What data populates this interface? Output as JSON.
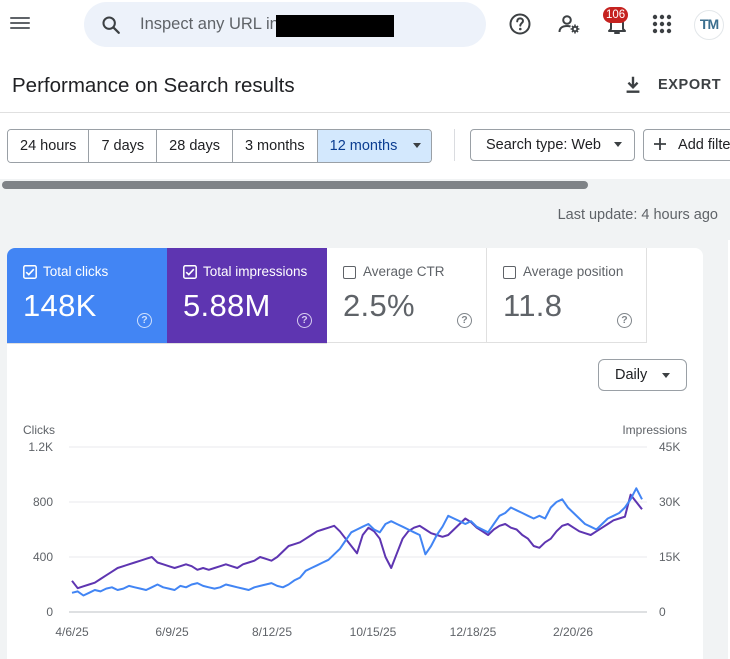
{
  "search": {
    "placeholder": "Inspect any URL in",
    "icon": "search-icon"
  },
  "header": {
    "notifications_count": "106",
    "avatar_text": "TM"
  },
  "page": {
    "title": "Performance on Search results",
    "export_label": "EXPORT"
  },
  "date_range": {
    "options": [
      "24 hours",
      "7 days",
      "28 days",
      "3 months",
      "12 months"
    ],
    "selected": "12 months"
  },
  "filters": {
    "search_type": "Search type: Web",
    "add_filter": "Add filte"
  },
  "last_update": "Last update: 4 hours ago",
  "metrics": [
    {
      "label": "Total clicks",
      "value": "148K",
      "checked": true,
      "color": "#4285f4"
    },
    {
      "label": "Total impressions",
      "value": "5.88M",
      "checked": true,
      "color": "#5e35b1"
    },
    {
      "label": "Average CTR",
      "value": "2.5%",
      "checked": false,
      "color": "#ffffff"
    },
    {
      "label": "Average position",
      "value": "11.8",
      "checked": false,
      "color": "#ffffff"
    }
  ],
  "granularity": "Daily",
  "chart_data": {
    "type": "line",
    "left_axis": {
      "title": "Clicks",
      "min": 0,
      "max": 1200,
      "ticks": [
        "0",
        "400",
        "800",
        "1.2K"
      ],
      "tick_values": [
        0,
        400,
        800,
        1200
      ]
    },
    "right_axis": {
      "title": "Impressions",
      "min": 0,
      "max": 45000,
      "ticks": [
        "0",
        "15K",
        "30K",
        "45K"
      ],
      "tick_values": [
        0,
        15000,
        30000,
        45000
      ]
    },
    "x_labels": [
      "4/6/25",
      "6/9/25",
      "8/12/25",
      "10/15/25",
      "12/18/25",
      "2/20/26"
    ],
    "grid": true,
    "legend": "none",
    "series": [
      {
        "axis": "left",
        "color": "#4285f4",
        "values": [
          140,
          150,
          120,
          140,
          160,
          150,
          170,
          180,
          160,
          170,
          190,
          180,
          170,
          160,
          180,
          200,
          180,
          170,
          160,
          190,
          180,
          200,
          210,
          190,
          180,
          170,
          180,
          200,
          190,
          180,
          170,
          160,
          180,
          190,
          200,
          210,
          190,
          180,
          200,
          230,
          250,
          300,
          320,
          340,
          360,
          380,
          420,
          460,
          520,
          580,
          600,
          620,
          640,
          600,
          580,
          640,
          660,
          640,
          620,
          600,
          580,
          560,
          420,
          480,
          560,
          620,
          700,
          680,
          660,
          640,
          660,
          620,
          600,
          580,
          640,
          700,
          720,
          760,
          740,
          720,
          700,
          680,
          700,
          680,
          760,
          800,
          820,
          760,
          720,
          680,
          640,
          620,
          600,
          640,
          680,
          700,
          720,
          760,
          820,
          900,
          820
        ]
      },
      {
        "axis": "right",
        "color": "#5e35b1",
        "values": [
          8500,
          6500,
          7000,
          7500,
          8000,
          9000,
          10000,
          11000,
          12000,
          12500,
          13000,
          13500,
          14000,
          14500,
          15000,
          13500,
          13000,
          12500,
          12000,
          12500,
          13000,
          12500,
          11500,
          12000,
          11500,
          12000,
          12500,
          13000,
          12500,
          12000,
          13000,
          13500,
          14000,
          15000,
          14500,
          14000,
          15000,
          16500,
          18000,
          18500,
          19000,
          20000,
          21000,
          22000,
          22500,
          23000,
          23500,
          22000,
          20000,
          18000,
          16000,
          21000,
          23000,
          22000,
          20000,
          15000,
          12000,
          16000,
          20000,
          22000,
          23000,
          23500,
          22500,
          21500,
          21000,
          20500,
          21000,
          22500,
          24000,
          25500,
          24500,
          23000,
          22000,
          21000,
          22500,
          23500,
          24000,
          23000,
          22500,
          21000,
          20000,
          18000,
          17500,
          19000,
          20000,
          22000,
          23500,
          24000,
          23000,
          22000,
          21500,
          21000,
          22000,
          23000,
          24000,
          25000,
          25500,
          26000,
          32000,
          30000,
          28000
        ]
      }
    ]
  },
  "colors": {
    "clicks": "#4285f4",
    "impressions": "#5e35b1",
    "accent": "#1a73e8"
  }
}
